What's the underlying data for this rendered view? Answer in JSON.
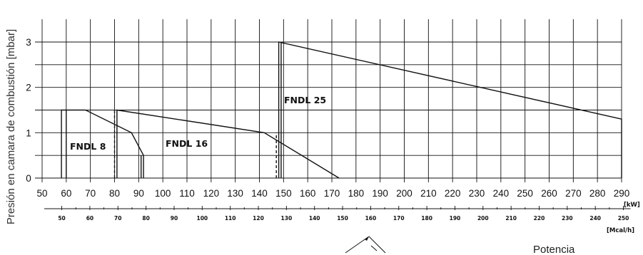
{
  "chart_data": {
    "type": "line",
    "ylabel": "Presión en camara de combustión [mbar]",
    "x_unit": "[kW]",
    "x2_unit": "[Mcal/h]",
    "footer_label": "Potencia",
    "xlim": [
      50,
      290
    ],
    "ylim": [
      0,
      3
    ],
    "x_ticks": [
      50,
      60,
      70,
      80,
      90,
      100,
      110,
      120,
      130,
      140,
      150,
      160,
      170,
      180,
      190,
      200,
      210,
      220,
      230,
      240,
      250,
      260,
      270,
      280,
      290
    ],
    "y_ticks": [
      0,
      1,
      2,
      3
    ],
    "x2_ticks": [
      50,
      60,
      70,
      80,
      90,
      100,
      110,
      120,
      130,
      140,
      150,
      160,
      170,
      180,
      190,
      200,
      210,
      220,
      230,
      240,
      250
    ],
    "grid": true,
    "series": [
      {
        "name": "FNDL 8",
        "x": [
          58,
          58,
          68,
          87,
          92,
          92
        ],
        "y": [
          0,
          1.5,
          1.5,
          1.0,
          0.5,
          0
        ]
      },
      {
        "name": "FNDL 16",
        "x": [
          81,
          81,
          142,
          173
        ],
        "y": [
          0,
          1.5,
          1.0,
          0
        ]
      },
      {
        "name": "FNDL 25",
        "x": [
          148,
          148,
          290,
          290
        ],
        "y": [
          0,
          3.0,
          1.3,
          0
        ]
      }
    ]
  }
}
